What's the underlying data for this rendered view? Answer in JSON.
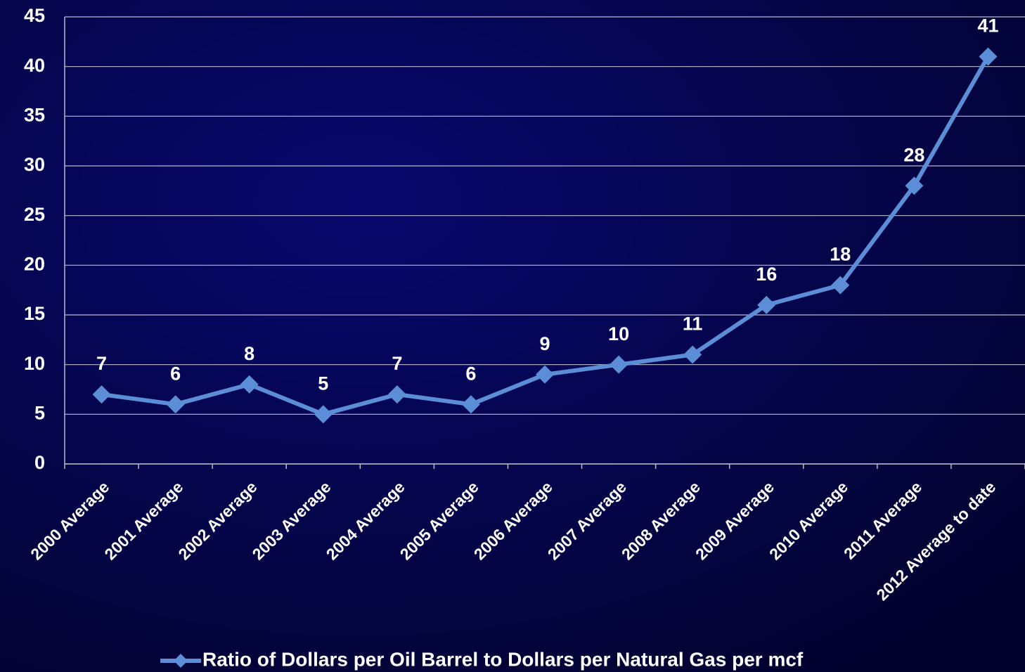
{
  "chart_data": {
    "type": "line",
    "categories": [
      "2000 Average",
      "2001 Average",
      "2002 Average",
      "2003 Average",
      "2004 Average",
      "2005 Average",
      "2006 Average",
      "2007 Average",
      "2008 Average",
      "2009 Average",
      "2010 Average",
      "2011 Average",
      "2012 Average to date"
    ],
    "series": [
      {
        "name": "Ratio of Dollars per Oil Barrel to Dollars per Natural Gas per mcf",
        "color": "#5b8ed6",
        "values": [
          7,
          6,
          8,
          5,
          7,
          6,
          9,
          10,
          11,
          16,
          18,
          28,
          41
        ]
      }
    ],
    "ylim": [
      0,
      45
    ],
    "yticks": [
      0,
      5,
      10,
      15,
      20,
      25,
      30,
      35,
      40,
      45
    ],
    "grid": true,
    "legend": "bottom"
  }
}
